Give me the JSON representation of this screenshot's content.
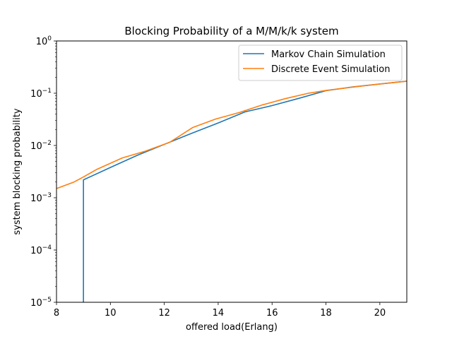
{
  "chart_data": {
    "type": "line",
    "title": "Blocking Probability of a M/M/k/k system",
    "xlabel": "offered load(Erlang)",
    "ylabel": "system blocking probability",
    "xlim": [
      8,
      21
    ],
    "ylim": [
      1e-05,
      1
    ],
    "yscale": "log",
    "grid": false,
    "legend_position": "upper right",
    "x_ticks": [
      {
        "value": 8,
        "label": "8"
      },
      {
        "value": 10,
        "label": "10"
      },
      {
        "value": 12,
        "label": "12"
      },
      {
        "value": 14,
        "label": "14"
      },
      {
        "value": 16,
        "label": "16"
      },
      {
        "value": 18,
        "label": "18"
      },
      {
        "value": 20,
        "label": "20"
      }
    ],
    "y_ticks": [
      {
        "value": 1e-05,
        "base": "10",
        "exp": "−5"
      },
      {
        "value": 0.0001,
        "base": "10",
        "exp": "−4"
      },
      {
        "value": 0.001,
        "base": "10",
        "exp": "−3"
      },
      {
        "value": 0.01,
        "base": "10",
        "exp": "−2"
      },
      {
        "value": 0.1,
        "base": "10",
        "exp": "−1"
      },
      {
        "value": 1,
        "base": "10",
        "exp": "0"
      }
    ],
    "series": [
      {
        "name": "Markov Chain Simulation",
        "color": "#1f77b4",
        "x": [
          9.0,
          9.0,
          10.0,
          11.0,
          12.0,
          13.0,
          14.0,
          15.0,
          16.0,
          17.0,
          18.0,
          19.0,
          20.0,
          21.0
        ],
        "y": [
          1e-05,
          0.0022,
          0.0038,
          0.0065,
          0.0105,
          0.017,
          0.027,
          0.044,
          0.058,
          0.08,
          0.112,
          0.132,
          0.15,
          0.17
        ]
      },
      {
        "name": "Discrete Event Simulation",
        "color": "#ff7f0e",
        "x": [
          8.0,
          8.65,
          9.0,
          9.5,
          10.45,
          11.3,
          12.2,
          13.05,
          13.9,
          14.8,
          15.65,
          16.5,
          17.35,
          18.0,
          19.0,
          20.0,
          21.0
        ],
        "y": [
          0.0015,
          0.002,
          0.0025,
          0.0035,
          0.0058,
          0.0078,
          0.0115,
          0.022,
          0.032,
          0.043,
          0.06,
          0.079,
          0.1,
          0.113,
          0.131,
          0.15,
          0.17
        ]
      }
    ]
  }
}
